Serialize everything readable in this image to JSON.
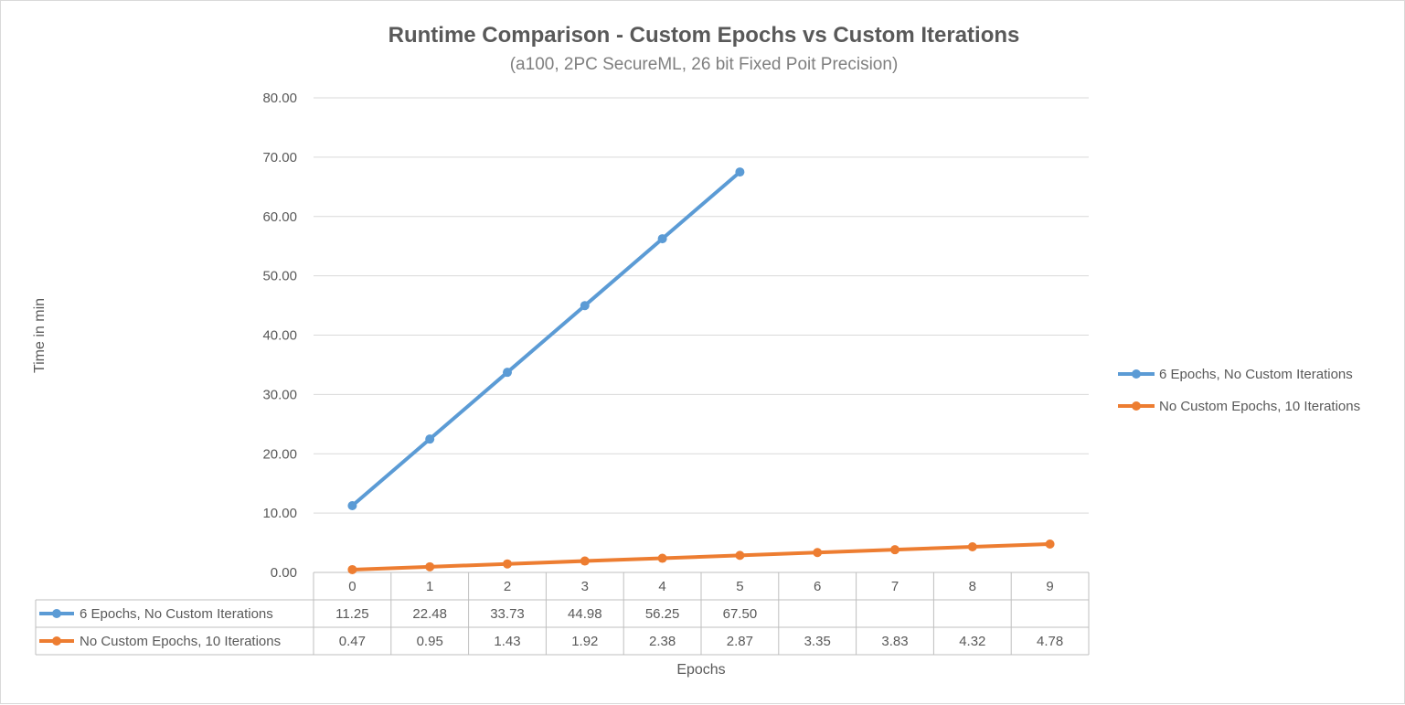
{
  "chart_data": {
    "type": "line",
    "title": "Runtime Comparison - Custom Epochs vs Custom Iterations",
    "subtitle": "(a100, 2PC SecureML, 26 bit Fixed Poit Precision)",
    "xlabel": "Epochs",
    "ylabel": "Time in min",
    "categories": [
      "0",
      "1",
      "2",
      "3",
      "4",
      "5",
      "6",
      "7",
      "8",
      "9"
    ],
    "ylim": [
      0,
      80
    ],
    "y_ticks": [
      "0.00",
      "10.00",
      "20.00",
      "30.00",
      "40.00",
      "50.00",
      "60.00",
      "70.00",
      "80.00"
    ],
    "grid": true,
    "legend_position": "right",
    "data_table": true,
    "series": [
      {
        "name": "6 Epochs, No Custom Iterations",
        "color": "#5b9bd5",
        "values": [
          11.25,
          22.48,
          33.73,
          44.98,
          56.25,
          67.5,
          null,
          null,
          null,
          null
        ],
        "labels": [
          "11.25",
          "22.48",
          "33.73",
          "44.98",
          "56.25",
          "67.50",
          "",
          "",
          "",
          ""
        ]
      },
      {
        "name": "No Custom Epochs, 10 Iterations",
        "color": "#ed7d31",
        "values": [
          0.47,
          0.95,
          1.43,
          1.92,
          2.38,
          2.87,
          3.35,
          3.83,
          4.32,
          4.78
        ],
        "labels": [
          "0.47",
          "0.95",
          "1.43",
          "1.92",
          "2.38",
          "2.87",
          "3.35",
          "3.83",
          "4.32",
          "4.78"
        ]
      }
    ]
  }
}
